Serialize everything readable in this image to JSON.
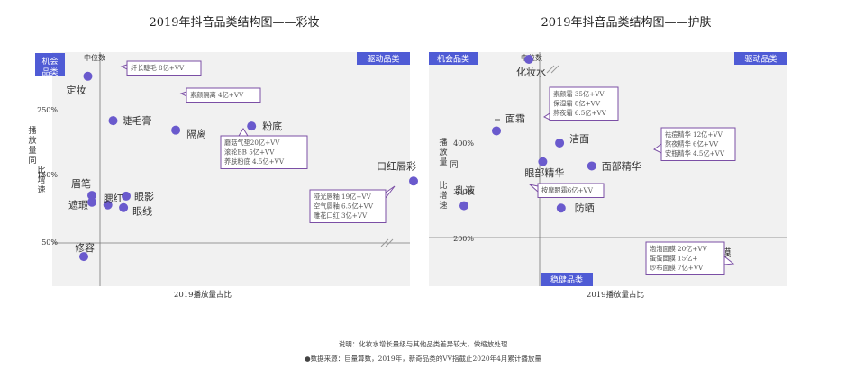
{
  "colors": {
    "point": "#6a5acd",
    "label_box": "#4f5bd5",
    "callout_border": "#7b4fa5",
    "plot_bg": "#f1f1f1"
  },
  "titles": {
    "left": "2019年抖音品类结构图——彩妆",
    "right": "2019年抖音品类结构图——护肤"
  },
  "notes": {
    "line1": "说明：化妆水增长量级与其他品类差异较大，做缩放处理",
    "line2": "●数据来源：巨量算数，2019年，新奇品类的VV指截止2020年4月累计播放量"
  },
  "chart_data": [
    {
      "type": "scatter",
      "title": "2019年抖音品类结构图——彩妆",
      "xlabel": "2019播放量占比",
      "ylabel": "播放量同比增速",
      "x_median_label": "中位数",
      "ytick_labels": [
        "250%",
        "150%",
        "50%"
      ],
      "quadrant_labels": [
        "机会品类",
        "驱动品类"
      ],
      "points": [
        {
          "label": "定妆",
          "x": 0.7,
          "y": 307
        },
        {
          "label": "睫毛膏",
          "x": 1.5,
          "y": 230
        },
        {
          "label": "隔离",
          "x": 3.9,
          "y": 216
        },
        {
          "label": "粉底",
          "x": 6.8,
          "y": 222
        },
        {
          "label": "口红唇彩",
          "x": 13.0,
          "y": 141
        },
        {
          "label": "眉笔",
          "x": 0.8,
          "y": 120
        },
        {
          "label": "眼影",
          "x": 2.0,
          "y": 119
        },
        {
          "label": "遮瑕",
          "x": 0.8,
          "y": 110
        },
        {
          "label": "腮红",
          "x": 1.3,
          "y": 106
        },
        {
          "label": "眼线",
          "x": 1.9,
          "y": 102
        },
        {
          "label": "修容",
          "x": 0.6,
          "y": 30
        }
      ],
      "callouts": [
        [
          "纤长睫毛 8亿+VV"
        ],
        [
          "素颜隔离 4亿+VV"
        ],
        [
          "蘑菇气垫20亿+VV",
          "滚轮BB 5亿+VV",
          "养肤粉底 4.5亿+VV"
        ],
        [
          "哑光唇釉 19亿+VV",
          "空气唇釉 6.5亿+VV",
          "雕花口红 3亿+VV"
        ]
      ]
    },
    {
      "type": "scatter",
      "title": "2019年抖音品类结构图——护肤",
      "xlabel": "2019播放量占比",
      "ylabel": "播放量同比增速",
      "x_median_label": "中位数",
      "ytick_labels": [
        "400%",
        "300%",
        "200%"
      ],
      "quadrant_labels": [
        "机会品类",
        "驱动品类",
        "稳健品类"
      ],
      "points": [
        {
          "label": "化妆水",
          "x": 0.9,
          "y": 600
        },
        {
          "label": "面霜",
          "x": 0.6,
          "y": 428
        },
        {
          "label": "洁面",
          "x": 2.3,
          "y": 402
        },
        {
          "label": "眼部精华",
          "x": 1.2,
          "y": 362
        },
        {
          "label": "面部精华",
          "x": 4.4,
          "y": 353
        },
        {
          "label": "乳液",
          "x": 0.3,
          "y": 268
        },
        {
          "label": "防晒",
          "x": 2.4,
          "y": 263
        },
        {
          "label": "面膜",
          "x": 11.5,
          "y": 168
        }
      ],
      "callouts": [
        [
          "素颜霜 35亿+VV",
          "保湿霜 8亿+VV",
          "熬夜霜 6.5亿+VV"
        ],
        [
          "祛痘精华 12亿+VV",
          "熬夜精华 6亿+VV",
          "安瓶精华 4.5亿+VV"
        ],
        [
          "按摩眼霜6亿+VV"
        ],
        [
          "泡泡面膜 20亿+VV",
          "蛋蛋面膜 15亿+",
          "纱布面膜 7亿+VV"
        ]
      ]
    }
  ]
}
